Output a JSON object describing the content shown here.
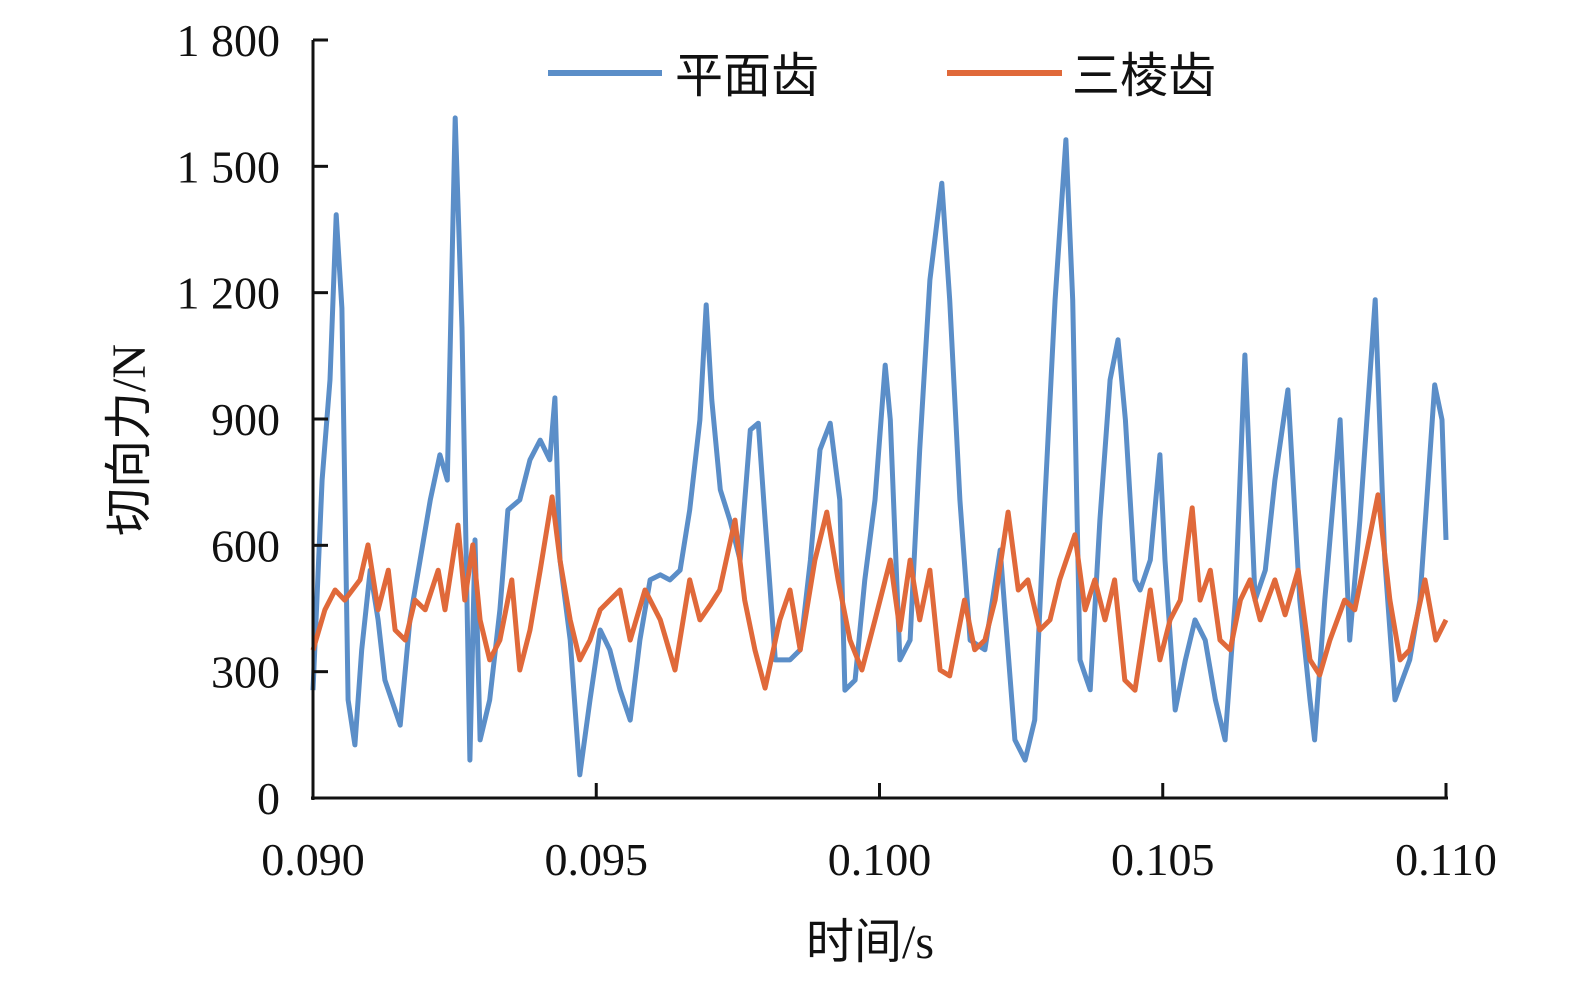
{
  "chart_data": {
    "type": "line",
    "title": "",
    "xlabel": "时间/s",
    "ylabel": "切向力/N",
    "xlim": [
      0.09,
      0.11
    ],
    "ylim": [
      0,
      1800
    ],
    "xticks": [
      0.09,
      0.095,
      0.1,
      0.105,
      0.11
    ],
    "xtick_labels": [
      "0.090",
      "0.095",
      "0.100",
      "0.105",
      "0.110"
    ],
    "yticks": [
      0,
      300,
      600,
      900,
      1200,
      1500,
      1800
    ],
    "ytick_labels": [
      "0",
      "300",
      "600",
      "900",
      "1 200",
      "1 500",
      "1 800"
    ],
    "grid": false,
    "legend_position": "top",
    "series": [
      {
        "name": "平面齿",
        "color": "#5b8ec8",
        "x": [
          0.09,
          0.09016,
          0.0903,
          0.09041,
          0.09051,
          0.09062,
          0.09074,
          0.09086,
          0.09101,
          0.09115,
          0.09127,
          0.09154,
          0.09171,
          0.09189,
          0.09207,
          0.09224,
          0.09237,
          0.09251,
          0.09263,
          0.09277,
          0.09286,
          0.09295,
          0.09312,
          0.0933,
          0.09344,
          0.09365,
          0.09383,
          0.09401,
          0.09418,
          0.09427,
          0.09436,
          0.09454,
          0.09471,
          0.09489,
          0.09507,
          0.09524,
          0.09542,
          0.0956,
          0.09577,
          0.09595,
          0.09613,
          0.0963,
          0.09648,
          0.09665,
          0.09683,
          0.09694,
          0.09704,
          0.09719,
          0.09736,
          0.09754,
          0.09772,
          0.09786,
          0.09798,
          0.09816,
          0.09842,
          0.0986,
          0.09878,
          0.09895,
          0.09913,
          0.0993,
          0.09939,
          0.09957,
          0.09974,
          0.09992,
          0.1001,
          0.10019,
          0.10036,
          0.10054,
          0.10071,
          0.10089,
          0.1011,
          0.10124,
          0.10142,
          0.1016,
          0.10186,
          0.10213,
          0.10239,
          0.10257,
          0.10274,
          0.10292,
          0.1031,
          0.10329,
          0.10341,
          0.10354,
          0.10372,
          0.10389,
          0.10407,
          0.10421,
          0.10434,
          0.10451,
          0.1046,
          0.10478,
          0.10495,
          0.10504,
          0.10522,
          0.1054,
          0.10557,
          0.10575,
          0.10593,
          0.1061,
          0.10628,
          0.10645,
          0.10663,
          0.10681,
          0.10698,
          0.10721,
          0.10742,
          0.1076,
          0.10768,
          0.10786,
          0.10813,
          0.1083,
          0.10848,
          0.10875,
          0.10892,
          0.1091,
          0.10936,
          0.10954,
          0.1098,
          0.10993,
          0.11
        ],
        "y": [
          256,
          755,
          993,
          1385,
          1163,
          233,
          126,
          352,
          541,
          423,
          280,
          173,
          423,
          565,
          708,
          815,
          755,
          1615,
          1116,
          90,
          613,
          138,
          233,
          447,
          684,
          708,
          803,
          850,
          803,
          950,
          565,
          375,
          55,
          233,
          399,
          352,
          257,
          185,
          375,
          518,
          530,
          518,
          541,
          684,
          898,
          1171,
          945,
          732,
          660,
          565,
          874,
          890,
          660,
          328,
          328,
          352,
          565,
          827,
          890,
          708,
          256,
          280,
          518,
          708,
          1028,
          898,
          328,
          375,
          827,
          1230,
          1460,
          1183,
          708,
          375,
          352,
          589,
          138,
          90,
          185,
          708,
          1183,
          1563,
          1183,
          328,
          257,
          660,
          993,
          1088,
          898,
          518,
          494,
          565,
          815,
          565,
          209,
          328,
          423,
          375,
          233,
          138,
          470,
          1052,
          470,
          541,
          755,
          969,
          470,
          233,
          138,
          470,
          898,
          375,
          660,
          1183,
          565,
          233,
          328,
          470,
          981,
          898,
          613
        ]
      },
      {
        "name": "三棱齿",
        "color": "#e0693a",
        "x": [
          0.09,
          0.09021,
          0.09039,
          0.09056,
          0.09083,
          0.09097,
          0.09115,
          0.09133,
          0.09145,
          0.09163,
          0.0918,
          0.09198,
          0.09221,
          0.09233,
          0.09256,
          0.09268,
          0.09282,
          0.09295,
          0.09312,
          0.0933,
          0.09351,
          0.09365,
          0.09383,
          0.09401,
          0.09422,
          0.09436,
          0.09454,
          0.09471,
          0.09489,
          0.09507,
          0.09524,
          0.09542,
          0.0956,
          0.09586,
          0.09613,
          0.09639,
          0.09665,
          0.09683,
          0.09701,
          0.09718,
          0.09745,
          0.09762,
          0.0978,
          0.09798,
          0.09824,
          0.09842,
          0.0986,
          0.09886,
          0.09907,
          0.09927,
          0.09948,
          0.09969,
          0.09992,
          0.10019,
          0.10036,
          0.10054,
          0.10071,
          0.10089,
          0.10107,
          0.10124,
          0.1015,
          0.10168,
          0.10186,
          0.10204,
          0.10227,
          0.10245,
          0.10262,
          0.10283,
          0.10301,
          0.10318,
          0.10345,
          0.10363,
          0.1038,
          0.10398,
          0.10415,
          0.10433,
          0.10451,
          0.10478,
          0.10495,
          0.10513,
          0.10531,
          0.10552,
          0.10566,
          0.10584,
          0.10601,
          0.10619,
          0.10637,
          0.10654,
          0.10672,
          0.10698,
          0.10716,
          0.10739,
          0.1076,
          0.10777,
          0.10795,
          0.10821,
          0.10839,
          0.10857,
          0.1088,
          0.10901,
          0.10919,
          0.10936,
          0.10963,
          0.10982,
          0.11
        ],
        "y": [
          351,
          447,
          494,
          470,
          518,
          601,
          447,
          541,
          399,
          375,
          470,
          447,
          541,
          447,
          648,
          470,
          601,
          423,
          328,
          375,
          518,
          304,
          399,
          541,
          715,
          565,
          423,
          328,
          375,
          447,
          470,
          494,
          375,
          494,
          423,
          304,
          518,
          423,
          458,
          494,
          660,
          470,
          352,
          261,
          423,
          494,
          352,
          565,
          679,
          518,
          375,
          304,
          423,
          565,
          399,
          565,
          423,
          541,
          304,
          290,
          470,
          352,
          375,
          470,
          679,
          494,
          518,
          399,
          423,
          518,
          625,
          447,
          518,
          423,
          518,
          280,
          256,
          494,
          328,
          423,
          470,
          689,
          470,
          541,
          375,
          352,
          470,
          518,
          423,
          518,
          435,
          541,
          328,
          292,
          375,
          470,
          447,
          565,
          720,
          470,
          328,
          352,
          518,
          375,
          423
        ]
      }
    ]
  }
}
